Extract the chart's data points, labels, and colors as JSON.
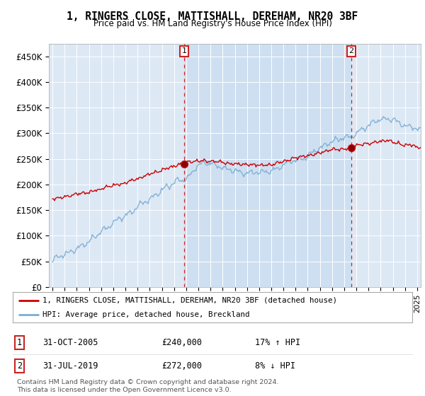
{
  "title": "1, RINGERS CLOSE, MATTISHALL, DEREHAM, NR20 3BF",
  "subtitle": "Price paid vs. HM Land Registry's House Price Index (HPI)",
  "bg_color": "#dde8f5",
  "plot_bg": "#dde8f5",
  "white_bg": "#ffffff",
  "red_color": "#cc0000",
  "blue_color": "#7aadd4",
  "fill_color": "#c5d9ef",
  "annotation_box_color": "#cc2222",
  "ylim": [
    0,
    475000
  ],
  "yticks": [
    0,
    50000,
    100000,
    150000,
    200000,
    250000,
    300000,
    350000,
    400000,
    450000
  ],
  "ytick_labels": [
    "£0",
    "£50K",
    "£100K",
    "£150K",
    "£200K",
    "£250K",
    "£300K",
    "£350K",
    "£400K",
    "£450K"
  ],
  "legend_line1": "1, RINGERS CLOSE, MATTISHALL, DEREHAM, NR20 3BF (detached house)",
  "legend_line2": "HPI: Average price, detached house, Breckland",
  "ann1_label": "1",
  "ann1_date": "31-OCT-2005",
  "ann1_price": "£240,000",
  "ann1_pct": "17% ↑ HPI",
  "ann2_label": "2",
  "ann2_date": "31-JUL-2019",
  "ann2_price": "£272,000",
  "ann2_pct": "8% ↓ HPI",
  "footer": "Contains HM Land Registry data © Crown copyright and database right 2024.\nThis data is licensed under the Open Government Licence v3.0.",
  "ann1_x_year": 2005.83,
  "ann1_y": 240000,
  "ann2_x_year": 2019.58,
  "ann2_y": 272000,
  "xlim_start": 1994.7,
  "xlim_end": 2025.3
}
